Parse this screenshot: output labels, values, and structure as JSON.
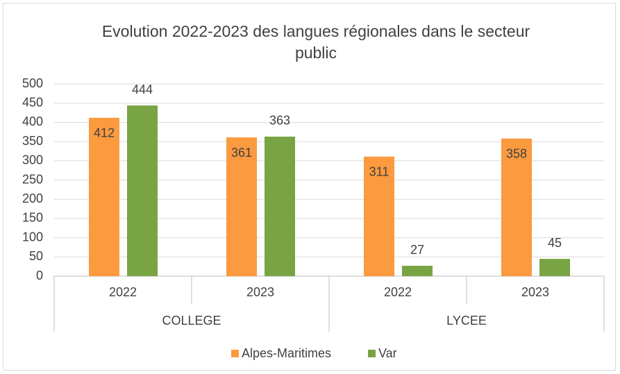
{
  "chart_data": {
    "type": "bar",
    "title": "Evolution  2022-2023 des langues  régionales dans le secteur public",
    "categories": [
      "2022",
      "2023",
      "2022",
      "2023"
    ],
    "groups": [
      "COLLEGE",
      "LYCEE"
    ],
    "series": [
      {
        "name": "Alpes-Maritimes",
        "color": "#fb9a3f",
        "values": [
          412,
          361,
          311,
          358
        ]
      },
      {
        "name": "Var",
        "color": "#78a443",
        "values": [
          444,
          363,
          27,
          45
        ]
      }
    ],
    "ylim": [
      0,
      500
    ],
    "yticks": [
      0,
      50,
      100,
      150,
      200,
      250,
      300,
      350,
      400,
      450,
      500
    ],
    "grid": true,
    "legend": "bottom"
  }
}
